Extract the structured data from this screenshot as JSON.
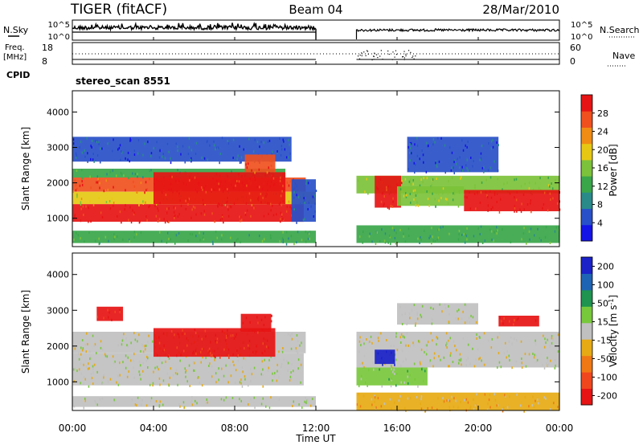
{
  "header": {
    "left": "TIGER (fitACF)",
    "center": "Beam 04",
    "right": "28/Mar/2010"
  },
  "noise_panel": {
    "left_label": "N.Sky",
    "right_label": "N.Search",
    "left_ticks": [
      "10^5",
      "10^0"
    ],
    "right_ticks": [
      "10^5",
      "10^0"
    ]
  },
  "freq_panel": {
    "left_label_1": "Freq.",
    "left_label_2": "[MHz]",
    "left_ticks": [
      "18",
      "8"
    ],
    "right_label": "Nave",
    "right_ticks": [
      "60",
      "0"
    ],
    "cpid_label": "CPID",
    "cpid_value": "stereo_scan 8551"
  },
  "colors": {
    "power": [
      "#1414e6",
      "#2850c8",
      "#2a8a8a",
      "#3aa64a",
      "#7cc23a",
      "#e6c814",
      "#f08c14",
      "#f0501e",
      "#e61414"
    ],
    "velocity": [
      "#1a22c8",
      "#1e64b4",
      "#1e9450",
      "#78c83c",
      "#c0c0c0",
      "#e6aa14",
      "#f07814",
      "#f0461e",
      "#e61414"
    ]
  },
  "chart_data": [
    {
      "type": "heatmap",
      "name": "power",
      "xlabel": "",
      "ylabel": "Slant Range [km]",
      "x_ticks": [
        "00:00",
        "04:00",
        "08:00",
        "12:00",
        "16:00",
        "20:00",
        "00:00"
      ],
      "y_ticks": [
        "1000",
        "2000",
        "3000",
        "4000"
      ],
      "ylim": [
        200,
        4600
      ],
      "data_gap_hours": [
        12,
        14
      ],
      "colorbar": {
        "label": "Power [dB]",
        "ticks": [
          "4",
          "8",
          "12",
          "16",
          "20",
          "24",
          "28"
        ],
        "range": [
          0,
          32
        ]
      },
      "regions": [
        {
          "t0": 0.0,
          "t1": 11.4,
          "r0": 900,
          "r1": 1400,
          "level": 8
        },
        {
          "t0": 0.0,
          "t1": 12.0,
          "r0": 1400,
          "r1": 1750,
          "level": 5
        },
        {
          "t0": 0.0,
          "t1": 11.5,
          "r0": 1750,
          "r1": 2150,
          "level": 7
        },
        {
          "t0": 0.0,
          "t1": 10.5,
          "r0": 2150,
          "r1": 2400,
          "level": 3
        },
        {
          "t0": 0.0,
          "t1": 10.8,
          "r0": 2600,
          "r1": 3300,
          "level": 1
        },
        {
          "t0": 4.0,
          "t1": 10.5,
          "r0": 1400,
          "r1": 2300,
          "level": 8
        },
        {
          "t0": 8.5,
          "t1": 10.0,
          "r0": 2300,
          "r1": 2800,
          "level": 7
        },
        {
          "t0": 0.0,
          "t1": 12.0,
          "r0": 300,
          "r1": 650,
          "level": 3
        },
        {
          "t0": 10.8,
          "t1": 12.0,
          "r0": 900,
          "r1": 2100,
          "level": 1
        },
        {
          "t0": 14.0,
          "t1": 24.0,
          "r0": 1700,
          "r1": 2200,
          "level": 4
        },
        {
          "t0": 14.9,
          "t1": 16.2,
          "r0": 1300,
          "r1": 2200,
          "level": 8
        },
        {
          "t0": 16.0,
          "t1": 19.3,
          "r0": 1350,
          "r1": 1900,
          "level": 4
        },
        {
          "t0": 19.3,
          "t1": 24.0,
          "r0": 1200,
          "r1": 1800,
          "level": 8
        },
        {
          "t0": 14.0,
          "t1": 24.0,
          "r0": 300,
          "r1": 800,
          "level": 3
        },
        {
          "t0": 16.5,
          "t1": 21.0,
          "r0": 2300,
          "r1": 3300,
          "level": 1
        }
      ]
    },
    {
      "type": "heatmap",
      "name": "velocity",
      "xlabel": "Time UT",
      "ylabel": "Slant Range [km]",
      "x_ticks": [
        "00:00",
        "04:00",
        "08:00",
        "12:00",
        "16:00",
        "20:00",
        "00:00"
      ],
      "y_ticks": [
        "1000",
        "2000",
        "3000",
        "4000"
      ],
      "ylim": [
        200,
        4600
      ],
      "data_gap_hours": [
        12,
        14
      ],
      "colorbar": {
        "label": "Velocity [m s^-1]",
        "ticks": [
          "200",
          "100",
          "50",
          "15",
          "-15",
          "-50",
          "-100",
          "-200"
        ],
        "range": [
          -250,
          250
        ]
      },
      "regions": [
        {
          "t0": 0.0,
          "t1": 11.4,
          "r0": 900,
          "r1": 1800,
          "level": 4
        },
        {
          "t0": 0.0,
          "t1": 11.5,
          "r0": 1800,
          "r1": 2400,
          "level": 4
        },
        {
          "t0": 4.0,
          "t1": 10.0,
          "r0": 1700,
          "r1": 2500,
          "level": 8
        },
        {
          "t0": 1.2,
          "t1": 2.5,
          "r0": 2700,
          "r1": 3100,
          "level": 8
        },
        {
          "t0": 8.3,
          "t1": 9.8,
          "r0": 2400,
          "r1": 2900,
          "level": 8
        },
        {
          "t0": 0.0,
          "t1": 12.0,
          "r0": 300,
          "r1": 600,
          "level": 4
        },
        {
          "t0": 14.0,
          "t1": 24.0,
          "r0": 1400,
          "r1": 2400,
          "level": 4
        },
        {
          "t0": 14.0,
          "t1": 17.5,
          "r0": 900,
          "r1": 1400,
          "level": 3
        },
        {
          "t0": 14.9,
          "t1": 15.9,
          "r0": 1500,
          "r1": 1900,
          "level": 0
        },
        {
          "t0": 14.0,
          "t1": 24.0,
          "r0": 200,
          "r1": 700,
          "level": 5
        },
        {
          "t0": 21.0,
          "t1": 23.0,
          "r0": 2550,
          "r1": 2850,
          "level": 8
        },
        {
          "t0": 16.0,
          "t1": 20.0,
          "r0": 2600,
          "r1": 3200,
          "level": 4
        }
      ]
    }
  ]
}
